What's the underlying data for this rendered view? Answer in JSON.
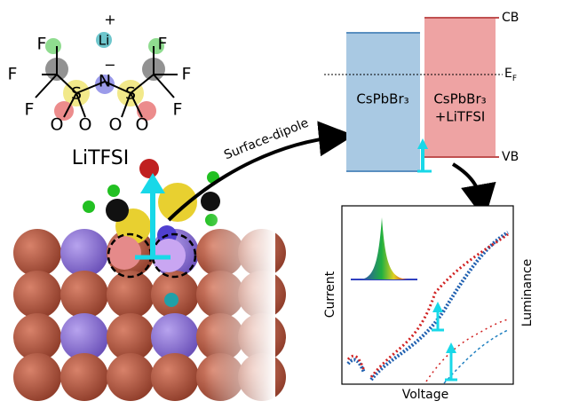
{
  "molecule": {
    "cation": "Li",
    "cation_charge": "+",
    "fluorines": [
      "F",
      "F",
      "F",
      "F",
      "F",
      "F"
    ],
    "sulfurs": [
      "S",
      "S"
    ],
    "nitrogen": "N",
    "anion_charge": "−",
    "oxygens": [
      "O",
      "O",
      "O",
      "O"
    ],
    "name": "LiTFSI"
  },
  "arrow_label": "Surface-dipole",
  "band_diagram": {
    "left_label": "CsPbBr₃",
    "right_label": [
      "CsPbBr₃",
      "+LiTFSI"
    ],
    "cb": "CB",
    "vb": "VB",
    "fermi": {
      "main": "E",
      "sub": "F"
    }
  },
  "plot": {
    "left_axis": "Current",
    "right_axis": "Luminance",
    "x_axis": "Voltage"
  }
}
